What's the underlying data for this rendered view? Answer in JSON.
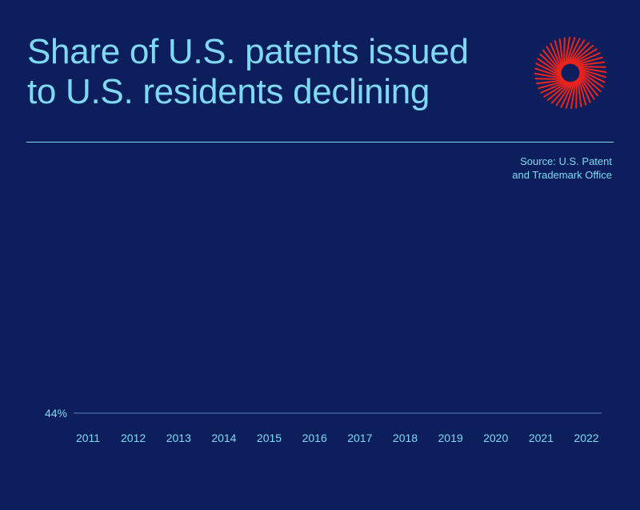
{
  "header": {
    "title_line1": "Share of U.S. patents issued",
    "title_line2": "to U.S. residents declining"
  },
  "source": {
    "line1": "Source: U.S. Patent",
    "line2": "and Trademark Office"
  },
  "colors": {
    "background": "#0c1f5c",
    "accent": "#7fd9f2",
    "logo": "#e8241c"
  },
  "logo": {
    "icon": "sunburst-logo-icon"
  },
  "chart_data": {
    "type": "line",
    "categories": [
      "2011",
      "2012",
      "2013",
      "2014",
      "2015",
      "2016",
      "2017",
      "2018",
      "2019",
      "2020",
      "2021",
      "2022"
    ],
    "series": [],
    "y_tick_labels": [
      "44%"
    ],
    "y_ticks": [
      44
    ],
    "ylim": [
      44,
      51
    ],
    "grid": true,
    "legend": "none"
  }
}
